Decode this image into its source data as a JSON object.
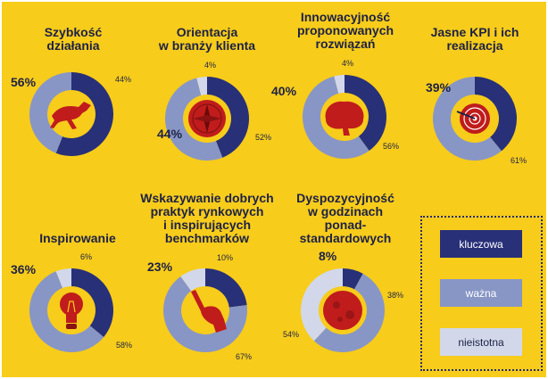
{
  "colors": {
    "background": "#f7cc1b",
    "kluczowa": "#283078",
    "wazna": "#8896c6",
    "nieistotna": "#d2d8ea",
    "icon": "#c01c1c",
    "text": "#1d2145"
  },
  "legend": [
    {
      "label": "kluczowa",
      "color": "#283078",
      "text_color": "#ffffff"
    },
    {
      "label": "ważna",
      "color": "#8896c6",
      "text_color": "#ffffff"
    },
    {
      "label": "nieistotna",
      "color": "#d2d8ea",
      "text_color": "#1d2145"
    }
  ],
  "chart_data": [
    {
      "type": "pie",
      "donut": true,
      "title": "Szybkość\ndziałania",
      "icon": "running-dog-icon",
      "categories": [
        "kluczowa",
        "ważna"
      ],
      "values": [
        56,
        44
      ],
      "labels": [
        "56%",
        "44%"
      ]
    },
    {
      "type": "pie",
      "donut": true,
      "title": "Orientacja\nw branży klienta",
      "icon": "compass-icon",
      "categories": [
        "kluczowa",
        "ważna",
        "nieistotna"
      ],
      "values": [
        44,
        52,
        4
      ],
      "labels": [
        "44%",
        "52%",
        "4%"
      ]
    },
    {
      "type": "pie",
      "donut": true,
      "title": "Innowacyjność\nproponowanych\nrozwiązań",
      "icon": "brain-icon",
      "categories": [
        "kluczowa",
        "ważna",
        "nieistotna"
      ],
      "values": [
        40,
        56,
        4
      ],
      "labels": [
        "40%",
        "56%",
        "4%"
      ]
    },
    {
      "type": "pie",
      "donut": true,
      "title": "Jasne KPI i ich\nrealizacja",
      "icon": "dartboard-icon",
      "categories": [
        "kluczowa",
        "ważna"
      ],
      "values": [
        39,
        61
      ],
      "labels": [
        "39%",
        "61%"
      ]
    },
    {
      "type": "pie",
      "donut": true,
      "title": "Inspirowanie",
      "icon": "light-bulb-icon",
      "categories": [
        "kluczowa",
        "ważna",
        "nieistotna"
      ],
      "values": [
        36,
        58,
        6
      ],
      "labels": [
        "36%",
        "58%",
        "6%"
      ]
    },
    {
      "type": "pie",
      "donut": true,
      "title": "Wskazywanie dobrych\npraktyk rynkowych\ni inspirujących\nbenchmarków",
      "icon": "pointing-hand-icon",
      "categories": [
        "kluczowa",
        "ważna",
        "nieistotna"
      ],
      "values": [
        23,
        67,
        10
      ],
      "labels": [
        "23%",
        "67%",
        "10%"
      ]
    },
    {
      "type": "pie",
      "donut": true,
      "title": "Dyspozycyjność\nw godzinach\nponad-\nstandardowych",
      "icon": "moon-icon",
      "categories": [
        "kluczowa",
        "ważna",
        "nieistotna"
      ],
      "values": [
        8,
        54,
        38
      ],
      "labels": [
        "8%",
        "54%",
        "38%"
      ]
    }
  ]
}
